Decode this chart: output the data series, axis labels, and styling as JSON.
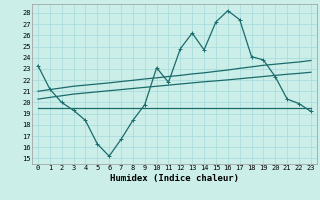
{
  "xlabel": "Humidex (Indice chaleur)",
  "bg_color": "#cceee8",
  "grid_color": "#aadddd",
  "line_color": "#1a6b6b",
  "xlim": [
    -0.5,
    23.5
  ],
  "ylim": [
    14.5,
    28.8
  ],
  "yticks": [
    15,
    16,
    17,
    18,
    19,
    20,
    21,
    22,
    23,
    24,
    25,
    26,
    27,
    28
  ],
  "xticks": [
    0,
    1,
    2,
    3,
    4,
    5,
    6,
    7,
    8,
    9,
    10,
    11,
    12,
    13,
    14,
    15,
    16,
    17,
    18,
    19,
    20,
    21,
    22,
    23
  ],
  "line1_y": [
    23.3,
    21.2,
    20.0,
    19.3,
    18.4,
    16.3,
    15.2,
    16.7,
    18.4,
    19.8,
    23.1,
    21.8,
    24.8,
    26.2,
    24.7,
    27.2,
    28.2,
    27.4,
    24.1,
    23.8,
    22.3,
    20.3,
    19.9,
    19.2
  ],
  "line2_y": [
    19.5,
    19.5,
    19.5,
    19.5,
    19.5,
    19.5,
    19.5,
    19.5,
    19.5,
    19.5,
    19.5,
    19.5,
    19.5,
    19.5,
    19.5,
    19.5,
    19.5,
    19.5,
    19.5,
    19.5,
    19.5,
    19.5,
    19.5,
    19.5
  ],
  "line3_y": [
    20.3,
    20.45,
    20.6,
    20.75,
    20.85,
    20.95,
    21.05,
    21.15,
    21.25,
    21.35,
    21.45,
    21.55,
    21.65,
    21.75,
    21.85,
    21.93,
    22.02,
    22.12,
    22.22,
    22.32,
    22.42,
    22.52,
    22.6,
    22.7
  ],
  "line4_y": [
    21.0,
    21.15,
    21.3,
    21.45,
    21.55,
    21.65,
    21.75,
    21.87,
    21.98,
    22.1,
    22.2,
    22.32,
    22.42,
    22.55,
    22.65,
    22.78,
    22.9,
    23.05,
    23.18,
    23.32,
    23.42,
    23.52,
    23.62,
    23.75
  ]
}
